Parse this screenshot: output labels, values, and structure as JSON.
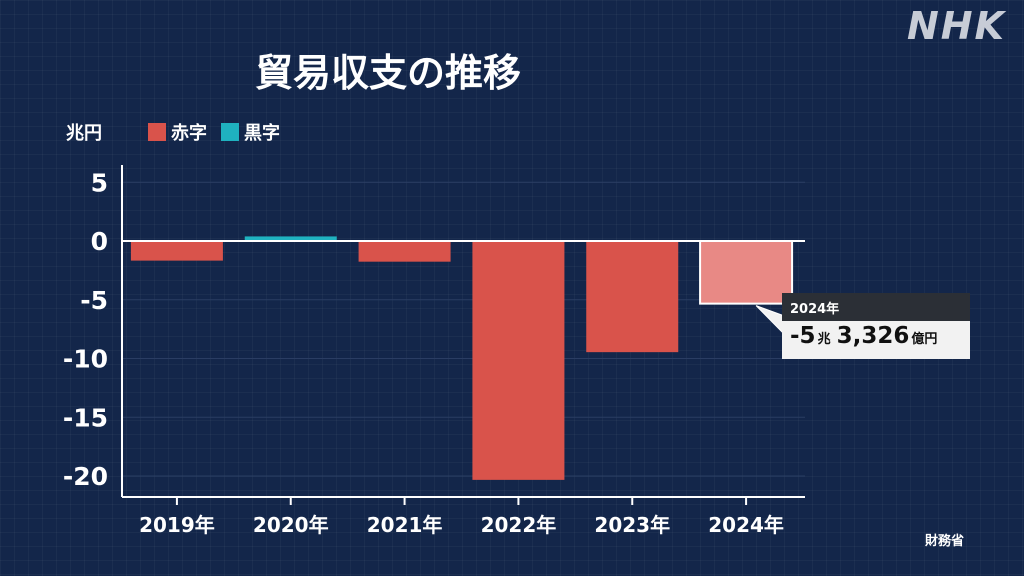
{
  "header": {
    "title": "貿易収支の推移",
    "logo": "NHK",
    "source": "財務省"
  },
  "legend": {
    "unit": "兆円",
    "deficit_label": "赤字",
    "surplus_label": "黒字"
  },
  "colors": {
    "deficit": "#d9534b",
    "surplus": "#1fb2c0",
    "estimate": "#e88985",
    "axis": "#ffffff",
    "grid": "#2a3d63"
  },
  "callout": {
    "year": "2024年",
    "sign_trillion": "-5",
    "trillion_unit": "兆",
    "hundred_million": "3,326",
    "hundred_million_unit": "億円"
  },
  "chart_data": {
    "type": "bar",
    "categories": [
      "2019年",
      "2020年",
      "2021年",
      "2022年",
      "2023年",
      "2024年"
    ],
    "values": [
      -1.67,
      0.39,
      -1.76,
      -20.33,
      -9.46,
      -5.33
    ],
    "ylabel": "兆円",
    "ylim": [
      -21.5,
      6.5
    ],
    "yticks": [
      5,
      0,
      -5,
      -10,
      -15,
      -20
    ],
    "ytick_labels": [
      "5",
      "0",
      "-5",
      "-10",
      "-15",
      "-20"
    ],
    "grid": true,
    "legend_position": "top-left",
    "highlight_category": "2024年"
  }
}
